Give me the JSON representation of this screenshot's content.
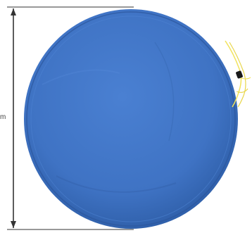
{
  "photo": {
    "subject": "blue-round-cushion-cover",
    "dimension_label": "m",
    "colors": {
      "cover_blue": "#3f73c4",
      "cover_shadow": "#2e5aa5",
      "cord_yellow": "#f1e35a",
      "dimension_line": "#333333",
      "background": "#ffffff"
    }
  }
}
